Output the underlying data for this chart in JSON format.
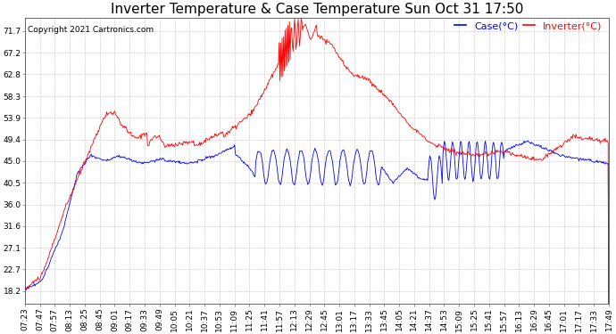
{
  "title": "Inverter Temperature & Case Temperature Sun Oct 31 17:50",
  "copyright": "Copyright 2021 Cartronics.com",
  "legend_case": "Case(°C)",
  "legend_inverter": "Inverter(°C)",
  "yticks": [
    18.2,
    22.7,
    27.1,
    31.6,
    36.0,
    40.5,
    45.0,
    49.4,
    53.9,
    58.3,
    62.8,
    67.2,
    71.7
  ],
  "ylim": [
    15.5,
    74.5
  ],
  "case_color": "blue",
  "inverter_color": "red",
  "background_color": "#ffffff",
  "grid_color": "#bbbbbb",
  "title_fontsize": 11,
  "label_fontsize": 6.5,
  "copyright_fontsize": 6.5,
  "legend_fontsize": 8,
  "xtick_labels": [
    "07:23",
    "07:47",
    "07:57",
    "08:13",
    "08:25",
    "08:45",
    "09:01",
    "09:17",
    "09:33",
    "09:49",
    "10:05",
    "10:21",
    "10:37",
    "10:53",
    "11:09",
    "11:25",
    "11:41",
    "11:57",
    "12:13",
    "12:29",
    "12:45",
    "13:01",
    "13:17",
    "13:33",
    "13:45",
    "14:05",
    "14:21",
    "14:37",
    "14:53",
    "15:09",
    "15:25",
    "15:41",
    "15:57",
    "16:13",
    "16:29",
    "16:45",
    "17:01",
    "17:17",
    "17:33",
    "17:49"
  ]
}
